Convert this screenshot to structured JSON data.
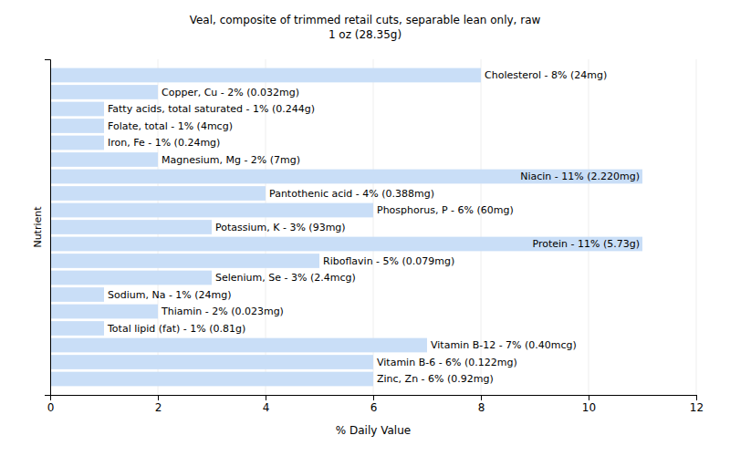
{
  "chart_data": {
    "type": "bar",
    "orientation": "horizontal",
    "title": "Veal, composite of trimmed retail cuts, separable lean only, raw",
    "subtitle": "1 oz (28.35g)",
    "x_label": "% Daily Value",
    "y_label": "Nutrient",
    "categories": [
      "Cholesterol - 8% (24mg)",
      "Copper, Cu - 2% (0.032mg)",
      "Fatty acids, total saturated - 1% (0.244g)",
      "Folate, total - 1% (4mcg)",
      "Iron, Fe - 1% (0.24mg)",
      "Magnesium, Mg - 2% (7mg)",
      "Niacin - 11% (2.220mg)",
      "Pantothenic acid - 4% (0.388mg)",
      "Phosphorus, P - 6% (60mg)",
      "Potassium, K - 3% (93mg)",
      "Protein - 11% (5.73g)",
      "Riboflavin - 5% (0.079mg)",
      "Selenium, Se - 3% (2.4mcg)",
      "Sodium, Na - 1% (24mg)",
      "Thiamin - 2% (0.023mg)",
      "Total lipid (fat) - 1% (0.81g)",
      "Vitamin B-12 - 7% (0.40mcg)",
      "Vitamin B-6 - 6% (0.122mg)",
      "Zinc, Zn - 6% (0.92mg)"
    ],
    "values": [
      8,
      2,
      1,
      1,
      1,
      2,
      11,
      4,
      6,
      3,
      11,
      5,
      3,
      1,
      2,
      1,
      7,
      6,
      6
    ],
    "color": "#c9def7",
    "xlim": [
      0,
      12
    ],
    "xticks": [
      0,
      2,
      4,
      6,
      8,
      10,
      12
    ],
    "grid": true,
    "tick_labels": "x"
  }
}
